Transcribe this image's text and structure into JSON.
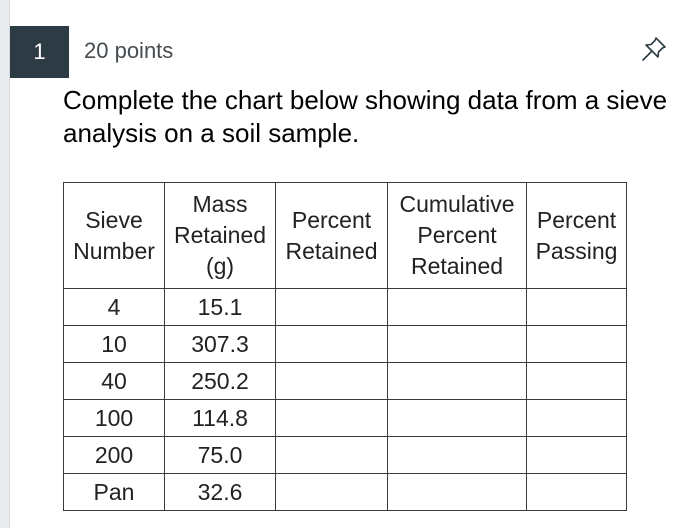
{
  "question": {
    "number": "1",
    "points": "20 points",
    "text": "Complete the chart below showing data from a sieve analysis on a soil sample."
  },
  "icons": {
    "pin": "pushpin-icon"
  },
  "colors": {
    "number_badge_bg": "#2d3b45",
    "number_badge_text": "#ffffff",
    "table_border": "#3a3a3a"
  },
  "table": {
    "headers": [
      {
        "lines": [
          "Sieve",
          "Number"
        ]
      },
      {
        "lines": [
          "Mass",
          "Retained",
          "(g)"
        ]
      },
      {
        "lines": [
          "Percent",
          "Retained"
        ]
      },
      {
        "lines": [
          "Cumulative",
          "Percent",
          "Retained"
        ]
      },
      {
        "lines": [
          "Percent",
          "Passing"
        ]
      }
    ],
    "rows": [
      {
        "sieve": "4",
        "mass": "15.1",
        "percent_retained": "",
        "cumulative": "",
        "passing": ""
      },
      {
        "sieve": "10",
        "mass": "307.3",
        "percent_retained": "",
        "cumulative": "",
        "passing": ""
      },
      {
        "sieve": "40",
        "mass": "250.2",
        "percent_retained": "",
        "cumulative": "",
        "passing": ""
      },
      {
        "sieve": "100",
        "mass": "114.8",
        "percent_retained": "",
        "cumulative": "",
        "passing": ""
      },
      {
        "sieve": "200",
        "mass": "75.0",
        "percent_retained": "",
        "cumulative": "",
        "passing": ""
      },
      {
        "sieve": "Pan",
        "mass": "32.6",
        "percent_retained": "",
        "cumulative": "",
        "passing": ""
      }
    ]
  }
}
